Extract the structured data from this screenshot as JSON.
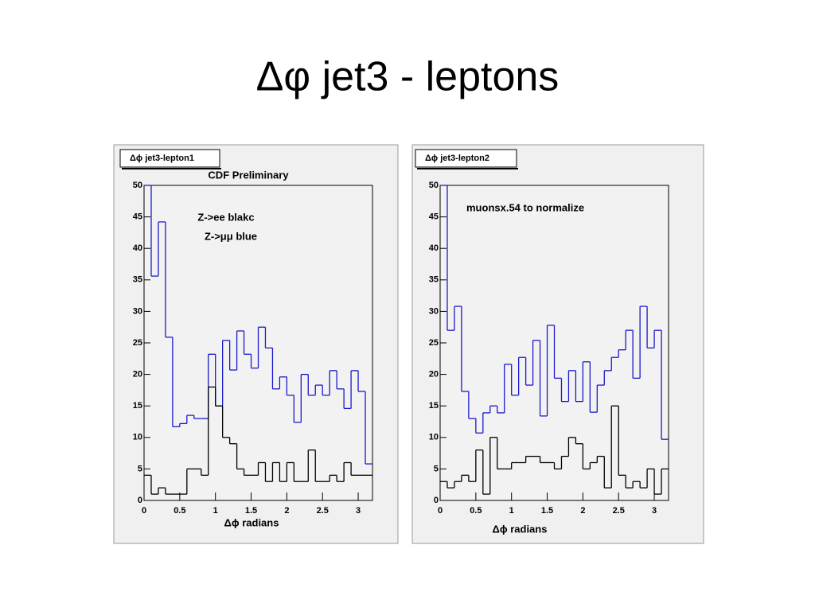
{
  "title": "Δφ jet3 - leptons",
  "chart_data": [
    {
      "type": "histogram",
      "title": "Δϕ jet3-lepton1",
      "x_label": "Δϕ radians",
      "annotations": [
        "CDF Preliminary",
        "Z->ee blakc",
        "Z->μμ blue"
      ],
      "bins": [
        0,
        0.1,
        0.2,
        0.3,
        0.4,
        0.5,
        0.6,
        0.7,
        0.8,
        0.9,
        1,
        1.1,
        1.2,
        1.3,
        1.4,
        1.5,
        1.6,
        1.7,
        1.8,
        1.9,
        2,
        2.1,
        2.2,
        2.3,
        2.4,
        2.5,
        2.6,
        2.7,
        2.8,
        2.9,
        3,
        3.1,
        3.2
      ],
      "xlim": [
        0,
        3.2
      ],
      "xticks": [
        0,
        0.5,
        1,
        1.5,
        2,
        2.5,
        3
      ],
      "ylim": [
        0,
        50
      ],
      "yticks": [
        0,
        5,
        10,
        15,
        20,
        25,
        30,
        35,
        40,
        45,
        50
      ],
      "series": [
        {
          "color": "#1a1acc",
          "values": [
            50,
            35.6,
            44.2,
            25.9,
            11.7,
            12.2,
            13.5,
            13,
            13,
            23.2,
            15,
            25.4,
            20.7,
            26.9,
            23.2,
            21,
            27.5,
            24.2,
            17.7,
            19.6,
            16.7,
            12.4,
            20,
            16.7,
            18.3,
            16.7,
            20.6,
            17.7,
            14.6,
            20.6,
            17.3,
            5.8
          ]
        },
        {
          "color": "#000000",
          "values": [
            4,
            1,
            2,
            1,
            1,
            1,
            5,
            5,
            4,
            18,
            15,
            10,
            9,
            5,
            4,
            4,
            6,
            3,
            6,
            3,
            6,
            3,
            3,
            8,
            3,
            3,
            4,
            3,
            6,
            4,
            4,
            4
          ]
        }
      ]
    },
    {
      "type": "histogram",
      "title": "Δϕ jet3-lepton2",
      "x_label": "Δϕ radians",
      "annotations": [
        "muonsx.54 to normalize"
      ],
      "bins": [
        0,
        0.1,
        0.2,
        0.3,
        0.4,
        0.5,
        0.6,
        0.7,
        0.8,
        0.9,
        1,
        1.1,
        1.2,
        1.3,
        1.4,
        1.5,
        1.6,
        1.7,
        1.8,
        1.9,
        2,
        2.1,
        2.2,
        2.3,
        2.4,
        2.5,
        2.6,
        2.7,
        2.8,
        2.9,
        3,
        3.1,
        3.2
      ],
      "xlim": [
        0,
        3.2
      ],
      "xticks": [
        0,
        0.5,
        1,
        1.5,
        2,
        2.5,
        3
      ],
      "ylim": [
        0,
        50
      ],
      "yticks": [
        0,
        5,
        10,
        15,
        20,
        25,
        30,
        35,
        40,
        45,
        50
      ],
      "series": [
        {
          "color": "#1a1acc",
          "values": [
            50,
            27,
            30.8,
            17.3,
            13,
            10.7,
            13.9,
            15,
            13.9,
            21.6,
            16.7,
            22.7,
            18.3,
            25.4,
            13.4,
            27.8,
            19.4,
            15.7,
            20.6,
            15.7,
            22,
            14,
            18.3,
            20.6,
            22.7,
            23.9,
            27,
            19.4,
            30.8,
            24.2,
            27,
            9.7
          ]
        },
        {
          "color": "#000000",
          "values": [
            3,
            2,
            3,
            4,
            3,
            8,
            1,
            10,
            5,
            5,
            6,
            6,
            7,
            7,
            6,
            6,
            5,
            7,
            10,
            9,
            5,
            6,
            7,
            2,
            15,
            4,
            2,
            3,
            2,
            5,
            1,
            5
          ]
        }
      ]
    }
  ]
}
